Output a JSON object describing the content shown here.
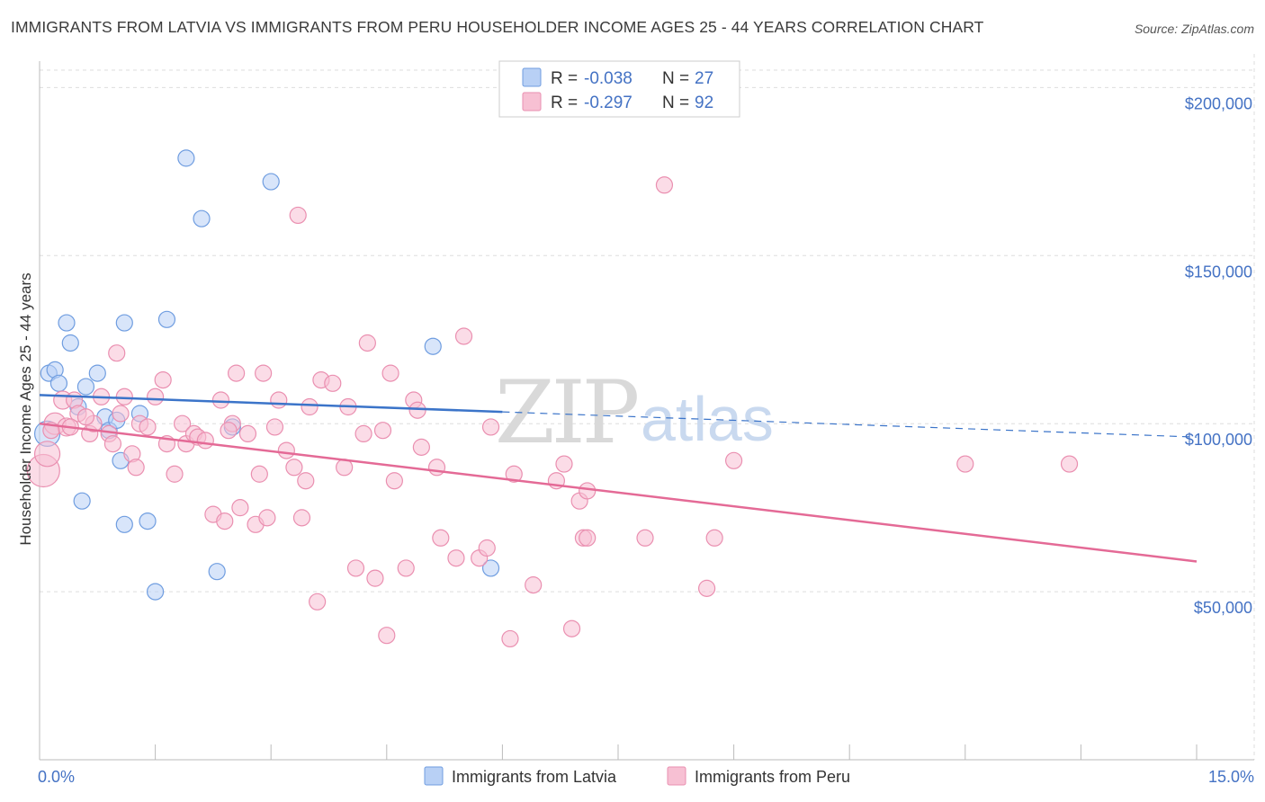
{
  "title": "IMMIGRANTS FROM LATVIA VS IMMIGRANTS FROM PERU HOUSEHOLDER INCOME AGES 25 - 44 YEARS CORRELATION CHART",
  "source": "Source: ZipAtlas.com",
  "watermark": {
    "zip": "ZIP",
    "atlas": "atlas"
  },
  "colors": {
    "latvia_fill": "#b8d0f5",
    "latvia_stroke": "#6f9de0",
    "latvia_line": "#3b74c9",
    "peru_fill": "#f7c0d3",
    "peru_stroke": "#ea8fb0",
    "peru_line": "#e46a96",
    "grid": "#dddddd",
    "tick_text": "#4472c4"
  },
  "legend": {
    "r_label": "R =",
    "n_label": "N =",
    "latvia": {
      "r": "-0.038",
      "n": "27"
    },
    "peru": {
      "r": "-0.297",
      "n": "92"
    }
  },
  "chart_data": {
    "type": "scatter",
    "xlabel": "",
    "ylabel": "Householder Income Ages 25 - 44 years",
    "xlim": [
      0,
      15
    ],
    "ylim": [
      0,
      210000
    ],
    "x_tick_labels": [
      "0.0%",
      "15.0%"
    ],
    "y_ticks": [
      50000,
      100000,
      150000,
      200000
    ],
    "y_tick_labels": [
      "$50,000",
      "$100,000",
      "$150,000",
      "$200,000"
    ],
    "grid": true,
    "legend_position": "top-center",
    "series": [
      {
        "name": "Immigrants from Latvia",
        "points": [
          [
            0.1,
            97000,
            14
          ],
          [
            0.12,
            115000,
            9
          ],
          [
            0.2,
            116000,
            9
          ],
          [
            0.25,
            112000,
            9
          ],
          [
            0.35,
            130000,
            9
          ],
          [
            0.4,
            124000,
            9
          ],
          [
            0.5,
            105000,
            9
          ],
          [
            0.6,
            111000,
            9
          ],
          [
            0.75,
            115000,
            9
          ],
          [
            0.85,
            102000,
            9
          ],
          [
            0.9,
            98000,
            9
          ],
          [
            1.0,
            101000,
            9
          ],
          [
            1.05,
            89000,
            9
          ],
          [
            0.55,
            77000,
            9
          ],
          [
            1.1,
            130000,
            9
          ],
          [
            1.3,
            103000,
            9
          ],
          [
            1.1,
            70000,
            9
          ],
          [
            1.4,
            71000,
            9
          ],
          [
            1.5,
            50000,
            9
          ],
          [
            1.65,
            131000,
            9
          ],
          [
            1.9,
            179000,
            9
          ],
          [
            2.1,
            161000,
            9
          ],
          [
            2.3,
            56000,
            9
          ],
          [
            2.5,
            99000,
            9
          ],
          [
            3.0,
            172000,
            9
          ],
          [
            5.1,
            123000,
            9
          ],
          [
            5.85,
            57000,
            9
          ]
        ],
        "trend": {
          "x0": 0,
          "y0": 108500,
          "x1": 6.0,
          "y1": 103500,
          "dashed_to_x": 15.0,
          "dashed_to_y": 96000
        }
      },
      {
        "name": "Immigrants from Peru",
        "points": [
          [
            0.05,
            86000,
            18
          ],
          [
            0.1,
            91000,
            14
          ],
          [
            0.2,
            100000,
            12
          ],
          [
            0.3,
            107000,
            10
          ],
          [
            0.35,
            99000,
            10
          ],
          [
            0.45,
            107000,
            9
          ],
          [
            0.5,
            103000,
            9
          ],
          [
            0.65,
            97000,
            9
          ],
          [
            0.7,
            100000,
            9
          ],
          [
            0.8,
            108000,
            9
          ],
          [
            0.9,
            97000,
            9
          ],
          [
            0.95,
            94000,
            9
          ],
          [
            1.0,
            121000,
            9
          ],
          [
            1.05,
            103000,
            9
          ],
          [
            1.1,
            108000,
            9
          ],
          [
            1.2,
            91000,
            9
          ],
          [
            1.25,
            87000,
            9
          ],
          [
            1.3,
            100000,
            9
          ],
          [
            1.4,
            99000,
            9
          ],
          [
            1.5,
            108000,
            9
          ],
          [
            1.6,
            113000,
            9
          ],
          [
            1.65,
            94000,
            9
          ],
          [
            1.75,
            85000,
            9
          ],
          [
            1.9,
            94000,
            9
          ],
          [
            1.85,
            100000,
            9
          ],
          [
            2.0,
            97000,
            9
          ],
          [
            2.05,
            96000,
            9
          ],
          [
            2.15,
            95000,
            9
          ],
          [
            2.25,
            73000,
            9
          ],
          [
            2.35,
            107000,
            9
          ],
          [
            2.4,
            71000,
            9
          ],
          [
            2.5,
            100000,
            9
          ],
          [
            2.55,
            115000,
            9
          ],
          [
            2.6,
            75000,
            9
          ],
          [
            2.7,
            97000,
            9
          ],
          [
            2.8,
            70000,
            9
          ],
          [
            2.85,
            85000,
            9
          ],
          [
            2.9,
            115000,
            9
          ],
          [
            2.95,
            72000,
            9
          ],
          [
            3.05,
            99000,
            9
          ],
          [
            3.1,
            107000,
            9
          ],
          [
            3.2,
            92000,
            9
          ],
          [
            3.3,
            87000,
            9
          ],
          [
            3.35,
            162000,
            9
          ],
          [
            3.4,
            72000,
            9
          ],
          [
            3.45,
            83000,
            9
          ],
          [
            3.5,
            105000,
            9
          ],
          [
            3.6,
            47000,
            9
          ],
          [
            3.65,
            113000,
            9
          ],
          [
            3.8,
            112000,
            9
          ],
          [
            3.95,
            87000,
            9
          ],
          [
            4.0,
            105000,
            9
          ],
          [
            4.1,
            57000,
            9
          ],
          [
            4.2,
            97000,
            9
          ],
          [
            4.25,
            124000,
            9
          ],
          [
            4.35,
            54000,
            9
          ],
          [
            4.45,
            98000,
            9
          ],
          [
            4.5,
            37000,
            9
          ],
          [
            4.55,
            115000,
            9
          ],
          [
            4.6,
            83000,
            9
          ],
          [
            4.75,
            57000,
            9
          ],
          [
            4.85,
            107000,
            9
          ],
          [
            4.9,
            104000,
            9
          ],
          [
            4.95,
            93000,
            9
          ],
          [
            5.15,
            87000,
            9
          ],
          [
            5.2,
            66000,
            9
          ],
          [
            5.4,
            60000,
            9
          ],
          [
            5.5,
            126000,
            9
          ],
          [
            5.7,
            60000,
            9
          ],
          [
            5.8,
            63000,
            9
          ],
          [
            5.85,
            99000,
            9
          ],
          [
            6.1,
            36000,
            9
          ],
          [
            6.15,
            85000,
            9
          ],
          [
            6.4,
            52000,
            9
          ],
          [
            6.7,
            83000,
            9
          ],
          [
            6.8,
            88000,
            9
          ],
          [
            6.9,
            39000,
            9
          ],
          [
            7.0,
            77000,
            9
          ],
          [
            7.1,
            80000,
            9
          ],
          [
            7.05,
            66000,
            9
          ],
          [
            7.1,
            66000,
            9
          ],
          [
            7.85,
            66000,
            9
          ],
          [
            8.1,
            171000,
            9
          ],
          [
            8.65,
            51000,
            9
          ],
          [
            8.75,
            66000,
            9
          ],
          [
            9.0,
            89000,
            9
          ],
          [
            12.0,
            88000,
            9
          ],
          [
            13.35,
            88000,
            9
          ],
          [
            0.4,
            99000,
            9
          ],
          [
            0.15,
            98000,
            9
          ],
          [
            2.45,
            98000,
            9
          ],
          [
            0.6,
            102000,
            9
          ]
        ],
        "trend": {
          "x0": 0,
          "y0": 100000,
          "x1": 15.0,
          "y1": 59000
        }
      }
    ]
  }
}
